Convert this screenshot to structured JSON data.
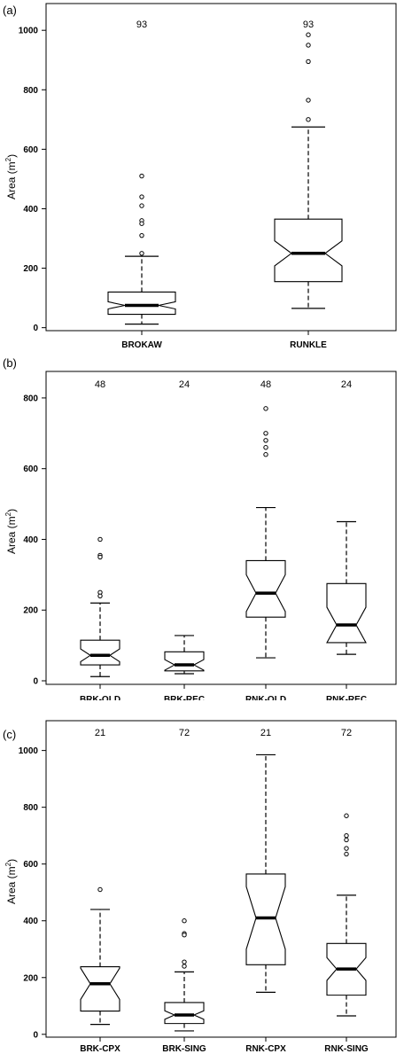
{
  "chart_data": [
    {
      "type": "boxplot",
      "panel_label": "(a)",
      "ylabel": "Area (m",
      "ylabel_sup": "2",
      "ylabel_close": ")",
      "ylim": [
        -10,
        1090
      ],
      "yticks": [
        "0",
        "200",
        "400",
        "600",
        "800",
        "1000"
      ],
      "ytick_values": [
        0,
        200,
        400,
        600,
        800,
        1000
      ],
      "categories": [
        "BROKAW",
        "RUNKLE"
      ],
      "n": [
        "93",
        "93"
      ],
      "boxes": [
        {
          "whisker_low": 12,
          "q1": 45,
          "median": 75,
          "q3": 120,
          "whisker_high": 240,
          "notch": 12,
          "outliers": [
            510,
            440,
            410,
            360,
            350,
            310,
            250
          ]
        },
        {
          "whisker_low": 65,
          "q1": 155,
          "median": 250,
          "q3": 365,
          "whisker_high": 675,
          "notch": 42,
          "outliers": [
            700,
            765,
            895,
            950,
            985
          ]
        }
      ]
    },
    {
      "type": "boxplot",
      "panel_label": "(b)",
      "ylabel": "Area (m",
      "ylabel_sup": "2",
      "ylabel_close": ")",
      "ylim": [
        -10,
        875
      ],
      "yticks": [
        "0",
        "200",
        "400",
        "600",
        "800"
      ],
      "ytick_values": [
        0,
        200,
        400,
        600,
        800
      ],
      "categories": [
        "BRK-OLD",
        "BRK-REC",
        "RNK-OLD",
        "RNK-REC"
      ],
      "n": [
        "48",
        "24",
        "48",
        "24"
      ],
      "boxes": [
        {
          "whisker_low": 12,
          "q1": 45,
          "median": 72,
          "q3": 115,
          "whisker_high": 220,
          "notch": 18,
          "outliers": [
            400,
            355,
            350,
            250,
            240
          ]
        },
        {
          "whisker_low": 20,
          "q1": 28,
          "median": 45,
          "q3": 82,
          "whisker_high": 128,
          "notch": 15
        },
        {
          "whisker_low": 65,
          "q1": 180,
          "median": 248,
          "q3": 340,
          "whisker_high": 490,
          "notch": 52,
          "outliers": [
            640,
            660,
            680,
            700,
            770
          ]
        },
        {
          "whisker_low": 75,
          "q1": 108,
          "median": 158,
          "q3": 275,
          "whisker_high": 450,
          "notch": 50
        }
      ]
    },
    {
      "type": "boxplot",
      "panel_label": "(c)",
      "ylabel": "Area (m",
      "ylabel_sup": "2",
      "ylabel_close": ")",
      "ylim": [
        -10,
        1105
      ],
      "yticks": [
        "0",
        "200",
        "400",
        "600",
        "800",
        "1000"
      ],
      "ytick_values": [
        0,
        200,
        400,
        600,
        800,
        1000
      ],
      "categories": [
        "BRK-CPX",
        "BRK-SING",
        "RNK-CPX",
        "RNK-SING"
      ],
      "n": [
        "21",
        "72",
        "21",
        "72"
      ],
      "boxes": [
        {
          "whisker_low": 35,
          "q1": 82,
          "median": 178,
          "q3": 238,
          "whisker_high": 440,
          "notch": 55,
          "outliers": [
            510
          ]
        },
        {
          "whisker_low": 12,
          "q1": 38,
          "median": 68,
          "q3": 112,
          "whisker_high": 220,
          "notch": 15,
          "outliers": [
            400,
            355,
            350,
            255,
            240
          ]
        },
        {
          "whisker_low": 148,
          "q1": 245,
          "median": 410,
          "q3": 565,
          "whisker_high": 985,
          "notch": 110
        },
        {
          "whisker_low": 65,
          "q1": 138,
          "median": 230,
          "q3": 320,
          "whisker_high": 490,
          "notch": 40,
          "outliers": [
            635,
            655,
            685,
            700,
            770
          ]
        }
      ]
    }
  ]
}
